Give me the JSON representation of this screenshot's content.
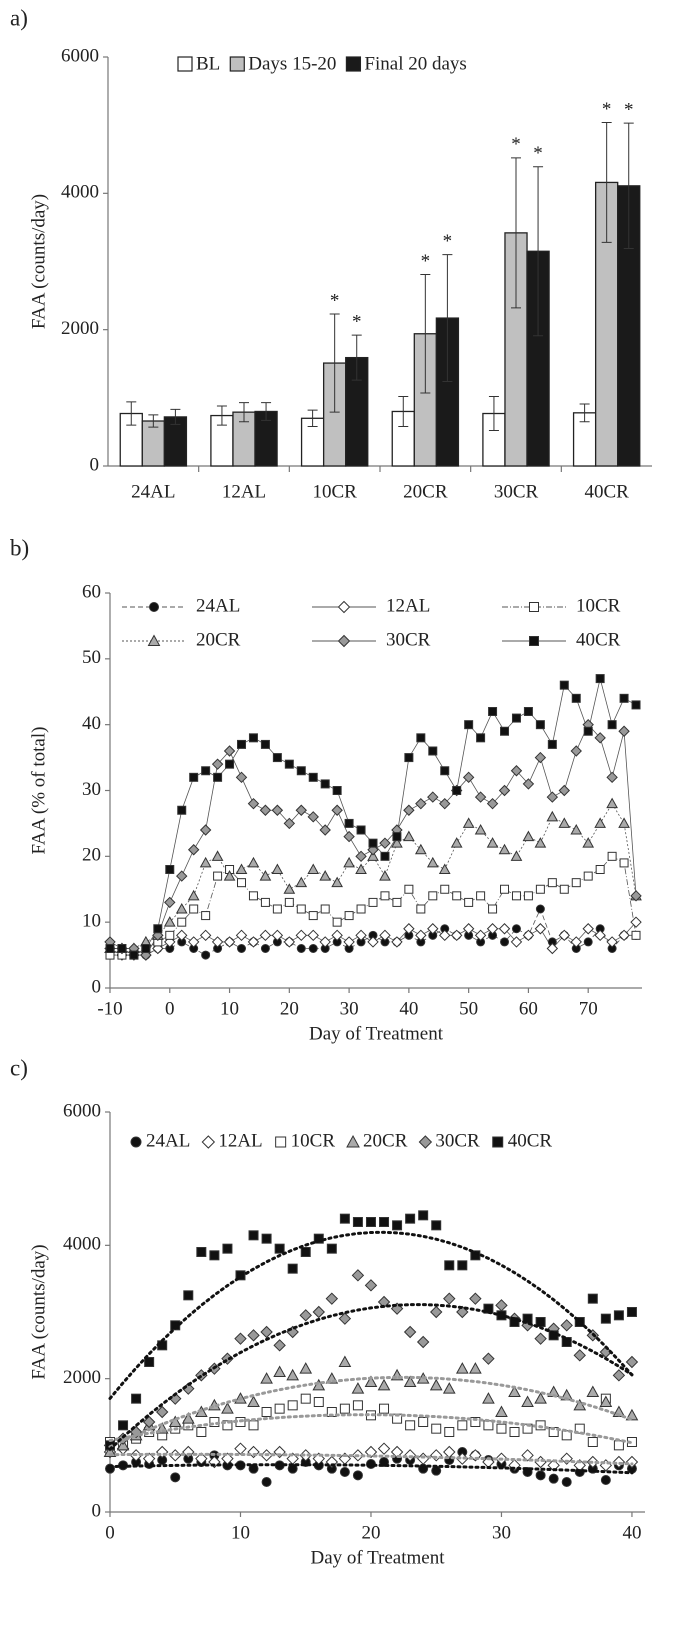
{
  "chart_data": [
    {
      "type": "bar",
      "panel_label": "a)",
      "y_label": "FAA (counts/day)",
      "categories": [
        "24AL",
        "12AL",
        "10CR",
        "20CR",
        "30CR",
        "40CR"
      ],
      "significance_marker": "*",
      "series": [
        {
          "name": "BL",
          "color": "#ffffff",
          "values": [
            770,
            740,
            700,
            800,
            770,
            780
          ],
          "errors": [
            170,
            140,
            120,
            220,
            250,
            130
          ],
          "significant": [
            false,
            false,
            false,
            false,
            false,
            false
          ]
        },
        {
          "name": "Days 15-20",
          "color": "#c0c0c0",
          "values": [
            660,
            790,
            1510,
            1940,
            3420,
            4160
          ],
          "errors": [
            90,
            140,
            720,
            870,
            1100,
            880
          ],
          "significant": [
            false,
            false,
            true,
            true,
            true,
            true
          ]
        },
        {
          "name": "Final 20 days",
          "color": "#1a1a1a",
          "values": [
            720,
            800,
            1590,
            2170,
            3150,
            4110
          ],
          "errors": [
            110,
            130,
            330,
            930,
            1240,
            920
          ],
          "significant": [
            false,
            false,
            true,
            true,
            true,
            true
          ]
        }
      ],
      "ylim": [
        0,
        6000
      ],
      "yticks": [
        0,
        2000,
        4000,
        6000
      ],
      "legend": "top"
    },
    {
      "type": "line",
      "panel_label": "b)",
      "y_label": "FAA (% of total)",
      "x_label": "Day of Treatment",
      "x": [
        -10,
        -8,
        -6,
        -4,
        -2,
        0,
        2,
        4,
        6,
        8,
        10,
        12,
        14,
        16,
        18,
        20,
        22,
        24,
        26,
        28,
        30,
        32,
        34,
        36,
        38,
        40,
        42,
        44,
        46,
        48,
        50,
        52,
        54,
        56,
        58,
        60,
        62,
        64,
        66,
        68,
        70,
        72,
        74,
        76,
        78
      ],
      "series": [
        {
          "name": "24AL",
          "marker": "circle",
          "color": "#111111",
          "dash": "5,3",
          "values": [
            6,
            6,
            5,
            5,
            6,
            6,
            7,
            6,
            5,
            6,
            7,
            6,
            7,
            6,
            7,
            7,
            6,
            6,
            6,
            7,
            6,
            7,
            8,
            7,
            7,
            8,
            7,
            8,
            9,
            8,
            8,
            7,
            8,
            7,
            9,
            8,
            12,
            7,
            8,
            6,
            7,
            9,
            6,
            8,
            8
          ]
        },
        {
          "name": "12AL",
          "marker": "diamond",
          "color": "#ffffff",
          "dash": "none",
          "values": [
            6,
            5,
            5,
            5,
            6,
            7,
            8,
            7,
            8,
            7,
            7,
            8,
            7,
            8,
            8,
            7,
            8,
            8,
            7,
            8,
            7,
            8,
            7,
            8,
            7,
            9,
            8,
            9,
            8,
            8,
            9,
            8,
            9,
            9,
            7,
            8,
            9,
            6,
            8,
            7,
            9,
            8,
            7,
            8,
            10
          ]
        },
        {
          "name": "10CR",
          "marker": "square",
          "color": "#ffffff",
          "dash": "6,2,1,2",
          "values": [
            5,
            5,
            5,
            6,
            7,
            8,
            10,
            12,
            11,
            17,
            18,
            16,
            14,
            13,
            12,
            13,
            12,
            11,
            12,
            10,
            11,
            12,
            13,
            14,
            13,
            15,
            12,
            14,
            15,
            14,
            13,
            14,
            12,
            15,
            14,
            14,
            15,
            16,
            15,
            16,
            17,
            18,
            20,
            19,
            8
          ]
        },
        {
          "name": "20CR",
          "marker": "triangle",
          "color": "#aaaaaa",
          "dash": "2,2",
          "values": [
            6,
            6,
            6,
            7,
            8,
            10,
            12,
            14,
            19,
            20,
            17,
            18,
            19,
            17,
            18,
            15,
            16,
            18,
            17,
            16,
            19,
            18,
            20,
            17,
            22,
            23,
            21,
            19,
            18,
            22,
            25,
            24,
            22,
            21,
            20,
            23,
            22,
            26,
            25,
            24,
            22,
            25,
            28,
            25,
            14
          ]
        },
        {
          "name": "30CR",
          "marker": "diamond",
          "color": "#999999",
          "dash": "none",
          "values": [
            7,
            6,
            6,
            5,
            8,
            13,
            17,
            21,
            24,
            34,
            36,
            32,
            28,
            27,
            27,
            25,
            27,
            26,
            24,
            27,
            23,
            20,
            21,
            22,
            24,
            27,
            28,
            29,
            28,
            30,
            32,
            29,
            28,
            30,
            33,
            31,
            35,
            29,
            30,
            36,
            40,
            38,
            32,
            39,
            14
          ]
        },
        {
          "name": "40CR",
          "marker": "square",
          "color": "#111111",
          "dash": "none",
          "values": [
            6,
            6,
            5,
            6,
            9,
            18,
            27,
            32,
            33,
            32,
            34,
            37,
            38,
            37,
            35,
            34,
            33,
            32,
            31,
            30,
            25,
            24,
            22,
            20,
            23,
            35,
            38,
            36,
            33,
            30,
            40,
            38,
            42,
            39,
            41,
            42,
            40,
            37,
            46,
            44,
            39,
            47,
            40,
            44,
            43
          ]
        }
      ],
      "xlim": [
        -10,
        79
      ],
      "xticks": [
        -10,
        0,
        10,
        20,
        30,
        40,
        50,
        60,
        70
      ],
      "ylim": [
        0,
        60
      ],
      "yticks": [
        0,
        10,
        20,
        30,
        40,
        50,
        60
      ],
      "legend": "top"
    },
    {
      "type": "scatter",
      "panel_label": "c)",
      "y_label": "FAA (counts/day)",
      "x_label": "Day of Treatment",
      "x": [
        0,
        1,
        2,
        3,
        4,
        5,
        6,
        7,
        8,
        9,
        10,
        11,
        12,
        13,
        14,
        15,
        16,
        17,
        18,
        19,
        20,
        21,
        22,
        23,
        24,
        25,
        26,
        27,
        28,
        29,
        30,
        31,
        32,
        33,
        34,
        35,
        36,
        37,
        38,
        39,
        40
      ],
      "trendline": "polynomial",
      "trendline_order": 2,
      "series": [
        {
          "name": "24AL",
          "marker": "circle",
          "color": "#111111",
          "trend_color": "#111111",
          "values": [
            650,
            700,
            750,
            720,
            780,
            520,
            800,
            750,
            850,
            700,
            700,
            650,
            450,
            700,
            650,
            750,
            700,
            650,
            600,
            550,
            720,
            750,
            800,
            780,
            650,
            620,
            780,
            900,
            850,
            780,
            720,
            650,
            600,
            550,
            500,
            450,
            600,
            650,
            480,
            700,
            650
          ]
        },
        {
          "name": "12AL",
          "marker": "diamond",
          "color": "#ffffff",
          "trend_color": "#999999",
          "values": [
            900,
            950,
            850,
            800,
            900,
            850,
            900,
            800,
            750,
            800,
            950,
            900,
            850,
            900,
            800,
            850,
            800,
            750,
            800,
            850,
            900,
            950,
            900,
            850,
            800,
            850,
            900,
            800,
            850,
            750,
            800,
            700,
            850,
            750,
            700,
            800,
            700,
            750,
            700,
            750,
            750
          ]
        },
        {
          "name": "10CR",
          "marker": "square",
          "color": "#ffffff",
          "trend_color": "#999999",
          "values": [
            1050,
            1000,
            1100,
            1200,
            1150,
            1250,
            1300,
            1200,
            1350,
            1300,
            1350,
            1300,
            1500,
            1550,
            1600,
            1700,
            1650,
            1500,
            1550,
            1600,
            1450,
            1550,
            1400,
            1300,
            1350,
            1250,
            1200,
            1300,
            1350,
            1300,
            1250,
            1200,
            1250,
            1300,
            1200,
            1150,
            1250,
            1050,
            1700,
            1000,
            1050
          ]
        },
        {
          "name": "20CR",
          "marker": "triangle",
          "color": "#aaaaaa",
          "trend_color": "#999999",
          "values": [
            900,
            1000,
            1150,
            1300,
            1250,
            1350,
            1400,
            1500,
            1600,
            1550,
            1700,
            1650,
            2000,
            2100,
            2050,
            2150,
            1900,
            2000,
            2250,
            1850,
            1950,
            1900,
            2050,
            1950,
            2000,
            1900,
            1850,
            2150,
            2150,
            1700,
            1500,
            1800,
            1650,
            1700,
            1800,
            1750,
            1600,
            1800,
            1650,
            1500,
            1450
          ]
        },
        {
          "name": "30CR",
          "marker": "diamond",
          "color": "#999999",
          "trend_color": "#111111",
          "values": [
            1000,
            1100,
            1200,
            1350,
            1500,
            1700,
            1850,
            2050,
            2150,
            2300,
            2600,
            2650,
            2700,
            2500,
            2700,
            2950,
            3000,
            3200,
            2900,
            3550,
            3400,
            3150,
            3050,
            2700,
            2550,
            3000,
            3200,
            3000,
            3200,
            2300,
            3100,
            2900,
            2800,
            2600,
            2750,
            2800,
            2350,
            2650,
            2400,
            2050,
            2250
          ]
        },
        {
          "name": "40CR",
          "marker": "square",
          "color": "#111111",
          "trend_color": "#111111",
          "values": [
            1000,
            1300,
            1700,
            2250,
            2500,
            2800,
            3250,
            3900,
            3850,
            3950,
            3550,
            4150,
            4100,
            3950,
            3650,
            3900,
            4100,
            3950,
            4400,
            4350,
            4350,
            4350,
            4300,
            4400,
            4450,
            4300,
            3700,
            3700,
            3850,
            3050,
            2950,
            2850,
            2900,
            2850,
            2650,
            2550,
            2850,
            3200,
            2900,
            2950,
            3000
          ]
        }
      ],
      "xlim": [
        0,
        41
      ],
      "xticks": [
        0,
        10,
        20,
        30,
        40
      ],
      "ylim": [
        0,
        6000
      ],
      "yticks": [
        0,
        2000,
        4000,
        6000
      ],
      "legend": "top"
    }
  ]
}
